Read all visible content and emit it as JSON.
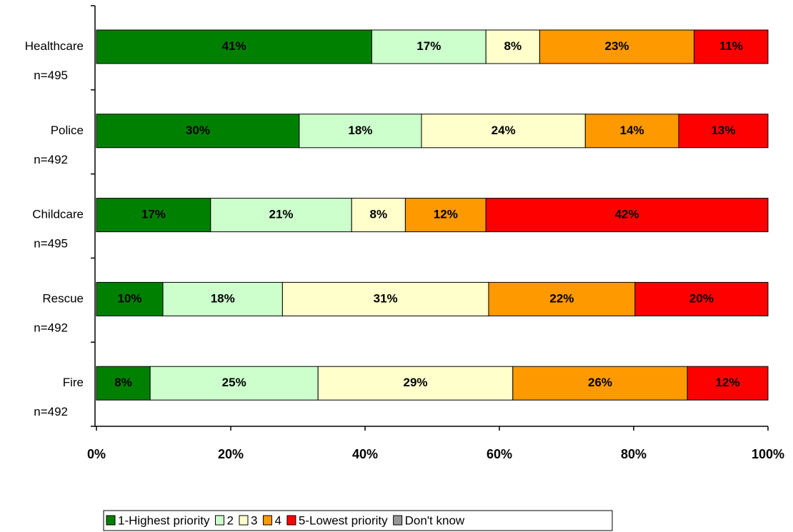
{
  "chart_data": {
    "type": "stacked_barh",
    "categories": [
      "Healthcare",
      "Police",
      "Childcare",
      "Rescue",
      "Fire"
    ],
    "category_notes": [
      "n=495",
      "n=492",
      "n=495",
      "n=492",
      "n=492"
    ],
    "series": [
      {
        "name": "1-Highest priority",
        "color": "#008000",
        "values": [
          41,
          30.2,
          17,
          9.9,
          8
        ],
        "value_labels": [
          "41%",
          "30%",
          "17%",
          "10%",
          "8%"
        ]
      },
      {
        "name": "2",
        "color": "#ccffcc",
        "values": [
          17,
          18.2,
          21,
          17.8,
          25
        ],
        "value_labels": [
          "17%",
          "18%",
          "21%",
          "18%",
          "25%"
        ]
      },
      {
        "name": "3",
        "color": "#ffffcc",
        "values": [
          8,
          24.4,
          8,
          30.7,
          29
        ],
        "value_labels": [
          "8%",
          "24%",
          "8%",
          "31%",
          "29%"
        ]
      },
      {
        "name": "4",
        "color": "#ff9900",
        "values": [
          23,
          13.9,
          12,
          21.8,
          26
        ],
        "value_labels": [
          "23%",
          "14%",
          "12%",
          "22%",
          "26%"
        ]
      },
      {
        "name": "5-Lowest priority",
        "color": "#ff0000",
        "values": [
          11,
          13.3,
          42,
          19.8,
          12
        ],
        "value_labels": [
          "11%",
          "13%",
          "42%",
          "20%",
          "12%"
        ]
      },
      {
        "name": "Don't know",
        "color": "#969696",
        "values": [
          0,
          0,
          0,
          0,
          0
        ]
      }
    ],
    "xlim": [
      0,
      100
    ],
    "xticks": [
      {
        "value": 0,
        "label": "0%"
      },
      {
        "value": 20,
        "label": "20%"
      },
      {
        "value": 40,
        "label": "40%"
      },
      {
        "value": 60,
        "label": "60%"
      },
      {
        "value": 80,
        "label": "80%"
      },
      {
        "value": 100,
        "label": "100%"
      }
    ]
  }
}
